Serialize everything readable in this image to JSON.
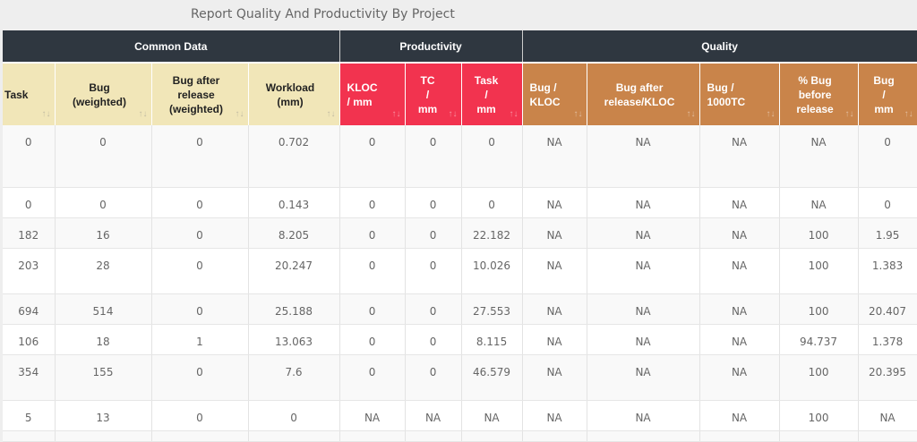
{
  "title": "Report Quality And Productivity By Project",
  "groups": {
    "common": "Common Data",
    "productivity": "Productivity",
    "quality": "Quality"
  },
  "columns": {
    "task": [
      "Task"
    ],
    "bug_weighted": [
      "Bug",
      "(weighted)"
    ],
    "bug_after_release_weighted": [
      "Bug after",
      "release",
      "(weighted)"
    ],
    "workload": [
      "Workload",
      "(mm)"
    ],
    "kloc_mm": [
      "KLOC",
      "/ mm"
    ],
    "tc_mm": [
      "TC",
      "/",
      "mm"
    ],
    "task_mm": [
      "Task",
      "/",
      "mm"
    ],
    "bug_kloc": [
      "Bug /",
      "KLOC"
    ],
    "bug_after_release_kloc": [
      "Bug after",
      "release/KLOC"
    ],
    "bug_1000tc": [
      "Bug /",
      "1000TC"
    ],
    "pct_bug_before_release": [
      "% Bug",
      "before",
      "release"
    ],
    "bug_mm": [
      "Bug",
      "/",
      "mm"
    ]
  },
  "sort_icon": "↑↓",
  "rows": [
    [
      "0",
      "0",
      "0",
      "0.702",
      "0",
      "0",
      "0",
      "NA",
      "NA",
      "NA",
      "NA",
      "0"
    ],
    [
      "0",
      "0",
      "0",
      "0.143",
      "0",
      "0",
      "0",
      "NA",
      "NA",
      "NA",
      "NA",
      "0"
    ],
    [
      "182",
      "16",
      "0",
      "8.205",
      "0",
      "0",
      "22.182",
      "NA",
      "NA",
      "NA",
      "100",
      "1.95"
    ],
    [
      "203",
      "28",
      "0",
      "20.247",
      "0",
      "0",
      "10.026",
      "NA",
      "NA",
      "NA",
      "100",
      "1.383"
    ],
    [
      "694",
      "514",
      "0",
      "25.188",
      "0",
      "0",
      "27.553",
      "NA",
      "NA",
      "NA",
      "100",
      "20.407"
    ],
    [
      "106",
      "18",
      "1",
      "13.063",
      "0",
      "0",
      "8.115",
      "NA",
      "NA",
      "NA",
      "94.737",
      "1.378"
    ],
    [
      "354",
      "155",
      "0",
      "7.6",
      "0",
      "0",
      "46.579",
      "NA",
      "NA",
      "NA",
      "100",
      "20.395"
    ],
    [
      "5",
      "13",
      "0",
      "0",
      "NA",
      "NA",
      "NA",
      "NA",
      "NA",
      "NA",
      "100",
      "NA"
    ],
    [
      "",
      "",
      "",
      "",
      "",
      "",
      "",
      "",
      "",
      "",
      "",
      ""
    ]
  ],
  "colors": {
    "group_header_bg": "#2f3740",
    "common_header_bg": "#f1e6b8",
    "productivity_header_bg": "#f2334f",
    "quality_header_bg": "#c9844a"
  }
}
